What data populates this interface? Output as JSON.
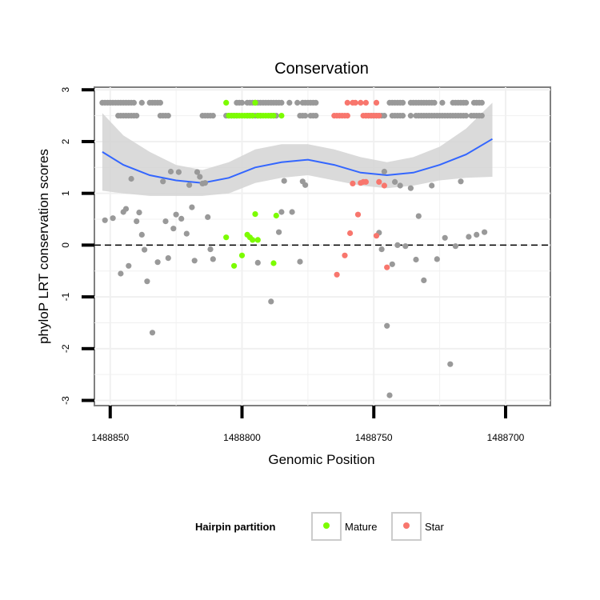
{
  "chart_data": {
    "type": "scatter",
    "title": "Conservation",
    "xlabel": "Genomic Position",
    "ylabel": "phyloP LRT conservation scores",
    "x_reversed": true,
    "xlim": [
      1488856,
      1488683
    ],
    "ylim": [
      -3.1,
      3.05
    ],
    "x_ticks": [
      1488850,
      1488800,
      1488750,
      1488700
    ],
    "x_tick_labels": [
      "1488850",
      "1488800",
      "1488750",
      "1488700"
    ],
    "y_ticks": [
      -3,
      -2,
      -1,
      0,
      1,
      2,
      3
    ],
    "y_tick_labels": [
      "-3",
      "-2",
      "-1",
      "0",
      "1",
      "2",
      "3"
    ],
    "reference_line": 0,
    "colors": {
      "other": "#999999",
      "Mature": "#7cfc00",
      "Star": "#f8766d",
      "smooth": "#3366ff",
      "ribbon": "#d3d3d3",
      "grid": "#f0f0f0",
      "border": "#7f7f7f"
    },
    "legend": {
      "title": "Hairpin partition",
      "position": "bottom",
      "entries": [
        {
          "name": "Mature",
          "color": "#7cfc00"
        },
        {
          "name": "Star",
          "color": "#f8766d"
        }
      ]
    },
    "series": [
      {
        "name": "Other",
        "color": "#999999",
        "points": [
          [
            1488852,
            0.48
          ],
          [
            1488849,
            0.52
          ],
          [
            1488846,
            -0.55
          ],
          [
            1488845,
            0.64
          ],
          [
            1488844,
            0.7
          ],
          [
            1488843,
            -0.4
          ],
          [
            1488842,
            1.28
          ],
          [
            1488840,
            0.46
          ],
          [
            1488839,
            0.63
          ],
          [
            1488838,
            0.2
          ],
          [
            1488837,
            -0.09
          ],
          [
            1488836,
            -0.7
          ],
          [
            1488834,
            -1.69
          ],
          [
            1488832,
            -0.33
          ],
          [
            1488830,
            1.23
          ],
          [
            1488829,
            0.46
          ],
          [
            1488828,
            -0.25
          ],
          [
            1488827,
            1.42
          ],
          [
            1488826,
            0.32
          ],
          [
            1488825,
            0.59
          ],
          [
            1488824,
            1.41
          ],
          [
            1488823,
            0.51
          ],
          [
            1488821,
            0.22
          ],
          [
            1488820,
            1.16
          ],
          [
            1488819,
            0.73
          ],
          [
            1488818,
            -0.3
          ],
          [
            1488817,
            1.41
          ],
          [
            1488816,
            1.32
          ],
          [
            1488815,
            1.19
          ],
          [
            1488814,
            1.2
          ],
          [
            1488813,
            0.54
          ],
          [
            1488812,
            -0.08
          ],
          [
            1488811,
            -0.27
          ],
          [
            1488794,
            -0.34
          ],
          [
            1488789,
            -1.09
          ],
          [
            1488786,
            0.25
          ],
          [
            1488785,
            0.64
          ],
          [
            1488784,
            1.24
          ],
          [
            1488781,
            0.64
          ],
          [
            1488778,
            -0.32
          ],
          [
            1488777,
            1.23
          ],
          [
            1488776,
            1.16
          ],
          [
            1488748,
            0.24
          ],
          [
            1488747,
            -0.08
          ],
          [
            1488746,
            1.42
          ],
          [
            1488745,
            -1.56
          ],
          [
            1488744,
            -2.9
          ],
          [
            1488743,
            -0.37
          ],
          [
            1488742,
            1.22
          ],
          [
            1488741,
            0.0
          ],
          [
            1488740,
            1.15
          ],
          [
            1488738,
            -0.02
          ],
          [
            1488736,
            1.1
          ],
          [
            1488734,
            -0.28
          ],
          [
            1488733,
            0.56
          ],
          [
            1488731,
            -0.68
          ],
          [
            1488728,
            1.15
          ],
          [
            1488726,
            -0.27
          ],
          [
            1488723,
            0.14
          ],
          [
            1488721,
            -2.3
          ],
          [
            1488719,
            -0.02
          ],
          [
            1488717,
            1.23
          ],
          [
            1488714,
            0.16
          ],
          [
            1488711,
            0.2
          ],
          [
            1488708,
            0.25
          ],
          [
            1488853,
            2.75
          ],
          [
            1488852,
            2.75
          ],
          [
            1488851,
            2.75
          ],
          [
            1488850,
            2.75
          ],
          [
            1488849,
            2.75
          ],
          [
            1488848,
            2.75
          ],
          [
            1488847,
            2.75
          ],
          [
            1488846,
            2.75
          ],
          [
            1488845,
            2.75
          ],
          [
            1488844,
            2.75
          ],
          [
            1488843,
            2.75
          ],
          [
            1488842,
            2.75
          ],
          [
            1488841,
            2.75
          ],
          [
            1488838,
            2.75
          ],
          [
            1488835,
            2.75
          ],
          [
            1488834,
            2.75
          ],
          [
            1488833,
            2.75
          ],
          [
            1488832,
            2.75
          ],
          [
            1488831,
            2.75
          ],
          [
            1488802,
            2.75
          ],
          [
            1488801,
            2.75
          ],
          [
            1488800,
            2.75
          ],
          [
            1488798,
            2.75
          ],
          [
            1488797,
            2.75
          ],
          [
            1488796,
            2.75
          ],
          [
            1488795,
            2.75
          ],
          [
            1488794,
            2.75
          ],
          [
            1488793,
            2.75
          ],
          [
            1488792,
            2.75
          ],
          [
            1488791,
            2.75
          ],
          [
            1488790,
            2.75
          ],
          [
            1488789,
            2.75
          ],
          [
            1488788,
            2.75
          ],
          [
            1488787,
            2.75
          ],
          [
            1488786,
            2.75
          ],
          [
            1488785,
            2.75
          ],
          [
            1488782,
            2.75
          ],
          [
            1488779,
            2.75
          ],
          [
            1488777,
            2.75
          ],
          [
            1488776,
            2.75
          ],
          [
            1488775,
            2.75
          ],
          [
            1488774,
            2.75
          ],
          [
            1488773,
            2.75
          ],
          [
            1488772,
            2.75
          ],
          [
            1488744,
            2.75
          ],
          [
            1488743,
            2.75
          ],
          [
            1488742,
            2.75
          ],
          [
            1488741,
            2.75
          ],
          [
            1488740,
            2.75
          ],
          [
            1488739,
            2.75
          ],
          [
            1488736,
            2.75
          ],
          [
            1488735,
            2.75
          ],
          [
            1488734,
            2.75
          ],
          [
            1488733,
            2.75
          ],
          [
            1488732,
            2.75
          ],
          [
            1488731,
            2.75
          ],
          [
            1488730,
            2.75
          ],
          [
            1488729,
            2.75
          ],
          [
            1488728,
            2.75
          ],
          [
            1488727,
            2.75
          ],
          [
            1488724,
            2.75
          ],
          [
            1488720,
            2.75
          ],
          [
            1488719,
            2.75
          ],
          [
            1488718,
            2.75
          ],
          [
            1488717,
            2.75
          ],
          [
            1488716,
            2.75
          ],
          [
            1488715,
            2.75
          ],
          [
            1488712,
            2.75
          ],
          [
            1488711,
            2.75
          ],
          [
            1488710,
            2.75
          ],
          [
            1488709,
            2.75
          ],
          [
            1488847,
            2.5
          ],
          [
            1488846,
            2.5
          ],
          [
            1488845,
            2.5
          ],
          [
            1488844,
            2.5
          ],
          [
            1488843,
            2.5
          ],
          [
            1488842,
            2.5
          ],
          [
            1488841,
            2.5
          ],
          [
            1488840,
            2.5
          ],
          [
            1488831,
            2.5
          ],
          [
            1488830,
            2.5
          ],
          [
            1488829,
            2.5
          ],
          [
            1488828,
            2.5
          ],
          [
            1488815,
            2.5
          ],
          [
            1488814,
            2.5
          ],
          [
            1488813,
            2.5
          ],
          [
            1488812,
            2.5
          ],
          [
            1488811,
            2.5
          ],
          [
            1488806,
            2.5
          ],
          [
            1488805,
            2.5
          ],
          [
            1488804,
            2.5
          ],
          [
            1488803,
            2.5
          ],
          [
            1488802,
            2.5
          ],
          [
            1488798,
            2.5
          ],
          [
            1488797,
            2.5
          ],
          [
            1488796,
            2.5
          ],
          [
            1488795,
            2.5
          ],
          [
            1488794,
            2.5
          ],
          [
            1488793,
            2.5
          ],
          [
            1488789,
            2.5
          ],
          [
            1488788,
            2.5
          ],
          [
            1488787,
            2.5
          ],
          [
            1488778,
            2.5
          ],
          [
            1488777,
            2.5
          ],
          [
            1488776,
            2.5
          ],
          [
            1488774,
            2.5
          ],
          [
            1488773,
            2.5
          ],
          [
            1488772,
            2.5
          ],
          [
            1488753,
            2.5
          ],
          [
            1488752,
            2.5
          ],
          [
            1488751,
            2.5
          ],
          [
            1488750,
            2.5
          ],
          [
            1488749,
            2.5
          ],
          [
            1488748,
            2.5
          ],
          [
            1488747,
            2.5
          ],
          [
            1488746,
            2.5
          ],
          [
            1488743,
            2.5
          ],
          [
            1488742,
            2.5
          ],
          [
            1488741,
            2.5
          ],
          [
            1488740,
            2.5
          ],
          [
            1488739,
            2.5
          ],
          [
            1488736,
            2.5
          ],
          [
            1488734,
            2.5
          ],
          [
            1488733,
            2.5
          ],
          [
            1488732,
            2.5
          ],
          [
            1488731,
            2.5
          ],
          [
            1488730,
            2.5
          ],
          [
            1488729,
            2.5
          ],
          [
            1488728,
            2.5
          ],
          [
            1488727,
            2.5
          ],
          [
            1488726,
            2.5
          ],
          [
            1488725,
            2.5
          ],
          [
            1488724,
            2.5
          ],
          [
            1488723,
            2.5
          ],
          [
            1488722,
            2.5
          ],
          [
            1488721,
            2.5
          ],
          [
            1488720,
            2.5
          ],
          [
            1488719,
            2.5
          ],
          [
            1488718,
            2.5
          ],
          [
            1488717,
            2.5
          ],
          [
            1488716,
            2.5
          ],
          [
            1488715,
            2.5
          ],
          [
            1488713,
            2.5
          ],
          [
            1488712,
            2.5
          ],
          [
            1488711,
            2.5
          ],
          [
            1488710,
            2.5
          ],
          [
            1488709,
            2.5
          ]
        ]
      },
      {
        "name": "Mature",
        "color": "#7cfc00",
        "points": [
          [
            1488806,
            2.75
          ],
          [
            1488795,
            2.75
          ],
          [
            1488805,
            2.5
          ],
          [
            1488804,
            2.5
          ],
          [
            1488803,
            2.5
          ],
          [
            1488802,
            2.5
          ],
          [
            1488801,
            2.5
          ],
          [
            1488800,
            2.5
          ],
          [
            1488799,
            2.5
          ],
          [
            1488798,
            2.5
          ],
          [
            1488797,
            2.5
          ],
          [
            1488796,
            2.5
          ],
          [
            1488794,
            2.5
          ],
          [
            1488793,
            2.5
          ],
          [
            1488792,
            2.5
          ],
          [
            1488791,
            2.5
          ],
          [
            1488790,
            2.5
          ],
          [
            1488789,
            2.5
          ],
          [
            1488788,
            2.5
          ],
          [
            1488785,
            2.5
          ],
          [
            1488806,
            0.15
          ],
          [
            1488803,
            -0.4
          ],
          [
            1488800,
            -0.2
          ],
          [
            1488798,
            0.2
          ],
          [
            1488797,
            0.15
          ],
          [
            1488796,
            0.1
          ],
          [
            1488795,
            0.6
          ],
          [
            1488794,
            0.1
          ],
          [
            1488788,
            -0.35
          ],
          [
            1488787,
            0.57
          ]
        ]
      },
      {
        "name": "Star",
        "color": "#f8766d",
        "points": [
          [
            1488760,
            2.75
          ],
          [
            1488758,
            2.75
          ],
          [
            1488757,
            2.75
          ],
          [
            1488755,
            2.75
          ],
          [
            1488753,
            2.75
          ],
          [
            1488749,
            2.75
          ],
          [
            1488765,
            2.5
          ],
          [
            1488764,
            2.5
          ],
          [
            1488763,
            2.5
          ],
          [
            1488762,
            2.5
          ],
          [
            1488761,
            2.5
          ],
          [
            1488760,
            2.5
          ],
          [
            1488754,
            2.5
          ],
          [
            1488753,
            2.5
          ],
          [
            1488752,
            2.5
          ],
          [
            1488751,
            2.5
          ],
          [
            1488750,
            2.5
          ],
          [
            1488749,
            2.5
          ],
          [
            1488748,
            2.5
          ],
          [
            1488764,
            -0.57
          ],
          [
            1488761,
            -0.2
          ],
          [
            1488759,
            0.23
          ],
          [
            1488758,
            1.19
          ],
          [
            1488756,
            0.59
          ],
          [
            1488755,
            1.2
          ],
          [
            1488754,
            1.22
          ],
          [
            1488753,
            1.22
          ],
          [
            1488749,
            0.18
          ],
          [
            1488748,
            1.22
          ],
          [
            1488746,
            1.15
          ],
          [
            1488745,
            -0.43
          ]
        ]
      }
    ],
    "smooth": {
      "x": [
        1488853,
        1488845,
        1488835,
        1488825,
        1488815,
        1488805,
        1488795,
        1488785,
        1488775,
        1488765,
        1488755,
        1488745,
        1488735,
        1488725,
        1488715,
        1488705
      ],
      "y": [
        1.8,
        1.55,
        1.35,
        1.25,
        1.2,
        1.3,
        1.5,
        1.6,
        1.65,
        1.55,
        1.4,
        1.35,
        1.4,
        1.55,
        1.75,
        2.05
      ],
      "lower": [
        1.05,
        1.0,
        0.95,
        0.95,
        0.95,
        1.0,
        1.2,
        1.3,
        1.35,
        1.25,
        1.15,
        1.1,
        1.15,
        1.25,
        1.3,
        1.32
      ],
      "upper": [
        2.55,
        2.12,
        1.8,
        1.55,
        1.45,
        1.6,
        1.85,
        1.95,
        1.95,
        1.85,
        1.7,
        1.6,
        1.7,
        1.9,
        2.25,
        2.75
      ]
    }
  }
}
